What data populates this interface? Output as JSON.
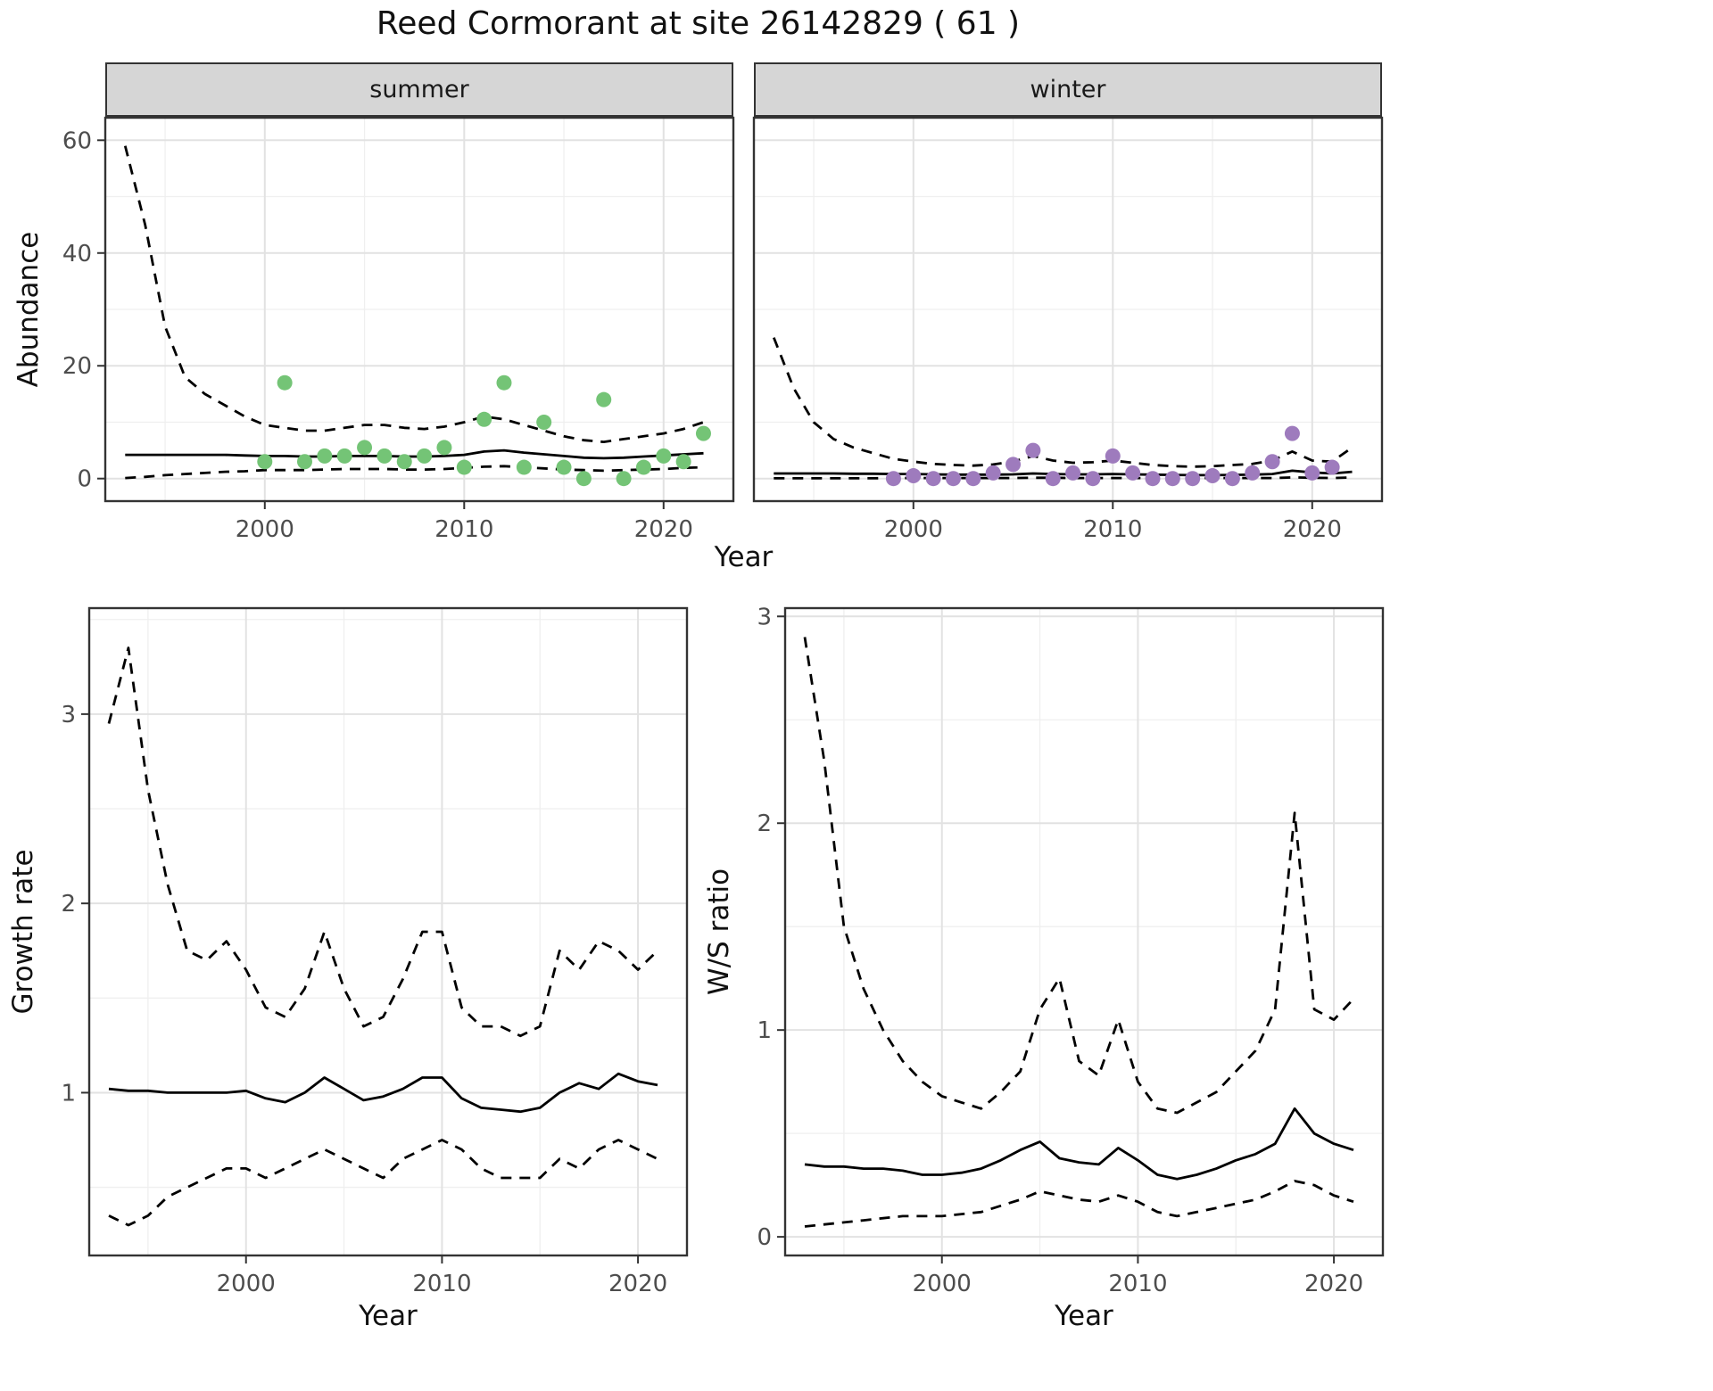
{
  "title": "Reed Cormorant at site 26142829 ( 61 )",
  "colors": {
    "summer_points": "#74c476",
    "winter_points": "#9e7bbd",
    "strip_bg": "#d6d6d6",
    "grid_major": "#e2e2e2",
    "grid_minor": "#efefef",
    "line": "#000000",
    "tick_text": "#4d4d4d",
    "panel_border": "#333333"
  },
  "chart_data": [
    {
      "id": "abundance_summer",
      "type": "line",
      "facet": "summer",
      "xlabel": "Year",
      "ylabel": "Abundance",
      "xlim": [
        1992,
        2023.5
      ],
      "ylim": [
        -4,
        64
      ],
      "xticks": [
        2000,
        2010,
        2020
      ],
      "yticks": [
        0,
        20,
        40,
        60
      ],
      "line_x": [
        1993,
        1994,
        1995,
        1996,
        1997,
        1998,
        1999,
        2000,
        2001,
        2002,
        2003,
        2004,
        2005,
        2006,
        2007,
        2008,
        2009,
        2010,
        2011,
        2012,
        2013,
        2014,
        2015,
        2016,
        2017,
        2018,
        2019,
        2020,
        2021,
        2022
      ],
      "fit": [
        4.2,
        4.2,
        4.2,
        4.2,
        4.2,
        4.2,
        4.1,
        4.0,
        4.0,
        3.9,
        3.9,
        4.0,
        4.0,
        4.0,
        3.9,
        3.9,
        4.0,
        4.2,
        4.8,
        5.0,
        4.6,
        4.3,
        4.0,
        3.7,
        3.6,
        3.7,
        3.9,
        4.1,
        4.3,
        4.5
      ],
      "upper": [
        59,
        45,
        27,
        18,
        15,
        13,
        11,
        9.5,
        9,
        8.5,
        8.5,
        9,
        9.5,
        9.5,
        9,
        8.8,
        9.2,
        10,
        11,
        10.5,
        9.5,
        8.5,
        7.5,
        6.8,
        6.5,
        7,
        7.5,
        8,
        8.8,
        10
      ],
      "lower": [
        0.1,
        0.3,
        0.6,
        0.8,
        1.0,
        1.2,
        1.3,
        1.5,
        1.5,
        1.5,
        1.6,
        1.7,
        1.7,
        1.7,
        1.6,
        1.6,
        1.7,
        1.9,
        2.1,
        2.2,
        2.0,
        1.8,
        1.6,
        1.5,
        1.4,
        1.5,
        1.6,
        1.7,
        1.9,
        2.0
      ],
      "points": {
        "color": "#74c476",
        "x": [
          2000,
          2001,
          2002,
          2003,
          2004,
          2005,
          2006,
          2007,
          2008,
          2009,
          2010,
          2011,
          2012,
          2013,
          2014,
          2015,
          2016,
          2017,
          2018,
          2019,
          2020,
          2021,
          2022
        ],
        "y": [
          3,
          17,
          3,
          4,
          4,
          5.5,
          4,
          3,
          4,
          5.5,
          2,
          10.5,
          17,
          2,
          10,
          2,
          0,
          14,
          0,
          2,
          4,
          3,
          8
        ]
      }
    },
    {
      "id": "abundance_winter",
      "type": "line",
      "facet": "winter",
      "xlabel": "Year",
      "ylabel": "Abundance",
      "xlim": [
        1992,
        2023.5
      ],
      "ylim": [
        -4,
        64
      ],
      "xticks": [
        2000,
        2010,
        2020
      ],
      "yticks": [
        0,
        20,
        40,
        60
      ],
      "line_x": [
        1993,
        1994,
        1995,
        1996,
        1997,
        1998,
        1999,
        2000,
        2001,
        2002,
        2003,
        2004,
        2005,
        2006,
        2007,
        2008,
        2009,
        2010,
        2011,
        2012,
        2013,
        2014,
        2015,
        2016,
        2017,
        2018,
        2019,
        2020,
        2021,
        2022
      ],
      "fit": [
        0.9,
        0.9,
        0.9,
        0.9,
        0.85,
        0.85,
        0.8,
        0.8,
        0.75,
        0.7,
        0.7,
        0.7,
        0.75,
        0.9,
        0.8,
        0.75,
        0.75,
        0.8,
        0.75,
        0.7,
        0.65,
        0.6,
        0.6,
        0.65,
        0.7,
        0.8,
        1.4,
        1.1,
        0.9,
        1.2
      ],
      "upper": [
        25,
        16,
        10,
        7,
        5.5,
        4.5,
        3.5,
        3,
        2.6,
        2.4,
        2.3,
        2.5,
        3,
        4,
        3.2,
        2.8,
        2.9,
        3.2,
        2.8,
        2.4,
        2.2,
        2.1,
        2.2,
        2.4,
        2.6,
        3.2,
        4.8,
        3.2,
        3.0,
        5.5
      ],
      "lower": [
        0.05,
        0.05,
        0.05,
        0.05,
        0.05,
        0.05,
        0.1,
        0.1,
        0.1,
        0.1,
        0.1,
        0.1,
        0.1,
        0.15,
        0.15,
        0.1,
        0.1,
        0.1,
        0.1,
        0.1,
        0.1,
        0.1,
        0.1,
        0.1,
        0.1,
        0.1,
        0.2,
        0.15,
        0.1,
        0.2
      ],
      "points": {
        "color": "#9e7bbd",
        "x": [
          1999,
          2000,
          2001,
          2002,
          2003,
          2004,
          2005,
          2006,
          2007,
          2008,
          2009,
          2010,
          2011,
          2012,
          2013,
          2014,
          2015,
          2016,
          2017,
          2018,
          2019,
          2020,
          2021
        ],
        "y": [
          0,
          0.5,
          0,
          0,
          0,
          1,
          2.5,
          5,
          0,
          1,
          0,
          4,
          1,
          0,
          0,
          0,
          0.5,
          0,
          1,
          3,
          8,
          1,
          2
        ]
      }
    },
    {
      "id": "growth_rate",
      "type": "line",
      "xlabel": "Year",
      "ylabel": "Growth rate",
      "xlim": [
        1992,
        2022.5
      ],
      "ylim": [
        0.14,
        3.56
      ],
      "xticks": [
        2000,
        2010,
        2020
      ],
      "yticks": [
        1,
        2,
        3
      ],
      "line_x": [
        1993,
        1994,
        1995,
        1996,
        1997,
        1998,
        1999,
        2000,
        2001,
        2002,
        2003,
        2004,
        2005,
        2006,
        2007,
        2008,
        2009,
        2010,
        2011,
        2012,
        2013,
        2014,
        2015,
        2016,
        2017,
        2018,
        2019,
        2020,
        2021
      ],
      "fit": [
        1.02,
        1.01,
        1.01,
        1.0,
        1.0,
        1.0,
        1.0,
        1.01,
        0.97,
        0.95,
        1.0,
        1.08,
        1.02,
        0.96,
        0.98,
        1.02,
        1.08,
        1.08,
        0.97,
        0.92,
        0.91,
        0.9,
        0.92,
        1.0,
        1.05,
        1.02,
        1.1,
        1.06,
        1.04
      ],
      "upper": [
        2.95,
        3.35,
        2.6,
        2.1,
        1.75,
        1.7,
        1.8,
        1.65,
        1.45,
        1.4,
        1.55,
        1.85,
        1.55,
        1.35,
        1.4,
        1.6,
        1.85,
        1.85,
        1.45,
        1.35,
        1.35,
        1.3,
        1.35,
        1.75,
        1.65,
        1.8,
        1.75,
        1.65,
        1.75
      ],
      "lower": [
        0.35,
        0.3,
        0.35,
        0.45,
        0.5,
        0.55,
        0.6,
        0.6,
        0.55,
        0.6,
        0.65,
        0.7,
        0.65,
        0.6,
        0.55,
        0.65,
        0.7,
        0.75,
        0.7,
        0.6,
        0.55,
        0.55,
        0.55,
        0.65,
        0.6,
        0.7,
        0.75,
        0.7,
        0.65
      ]
    },
    {
      "id": "ws_ratio",
      "type": "line",
      "xlabel": "Year",
      "ylabel": "W/S ratio",
      "xlim": [
        1992,
        2022.5
      ],
      "ylim": [
        -0.09,
        3.04
      ],
      "xticks": [
        2000,
        2010,
        2020
      ],
      "yticks": [
        0,
        1,
        2,
        3
      ],
      "line_x": [
        1993,
        1994,
        1995,
        1996,
        1997,
        1998,
        1999,
        2000,
        2001,
        2002,
        2003,
        2004,
        2005,
        2006,
        2007,
        2008,
        2009,
        2010,
        2011,
        2012,
        2013,
        2014,
        2015,
        2016,
        2017,
        2018,
        2019,
        2020,
        2021
      ],
      "fit": [
        0.35,
        0.34,
        0.34,
        0.33,
        0.33,
        0.32,
        0.3,
        0.3,
        0.31,
        0.33,
        0.37,
        0.42,
        0.46,
        0.38,
        0.36,
        0.35,
        0.43,
        0.37,
        0.3,
        0.28,
        0.3,
        0.33,
        0.37,
        0.4,
        0.45,
        0.62,
        0.5,
        0.45,
        0.42
      ],
      "upper": [
        2.9,
        2.3,
        1.5,
        1.2,
        1.0,
        0.85,
        0.75,
        0.68,
        0.65,
        0.62,
        0.7,
        0.8,
        1.1,
        1.25,
        0.85,
        0.78,
        1.05,
        0.75,
        0.62,
        0.6,
        0.65,
        0.7,
        0.8,
        0.9,
        1.1,
        2.05,
        1.1,
        1.05,
        1.15
      ],
      "lower": [
        0.05,
        0.06,
        0.07,
        0.08,
        0.09,
        0.1,
        0.1,
        0.1,
        0.11,
        0.12,
        0.15,
        0.18,
        0.22,
        0.2,
        0.18,
        0.17,
        0.2,
        0.17,
        0.12,
        0.1,
        0.12,
        0.14,
        0.16,
        0.18,
        0.22,
        0.27,
        0.25,
        0.2,
        0.17
      ]
    }
  ]
}
